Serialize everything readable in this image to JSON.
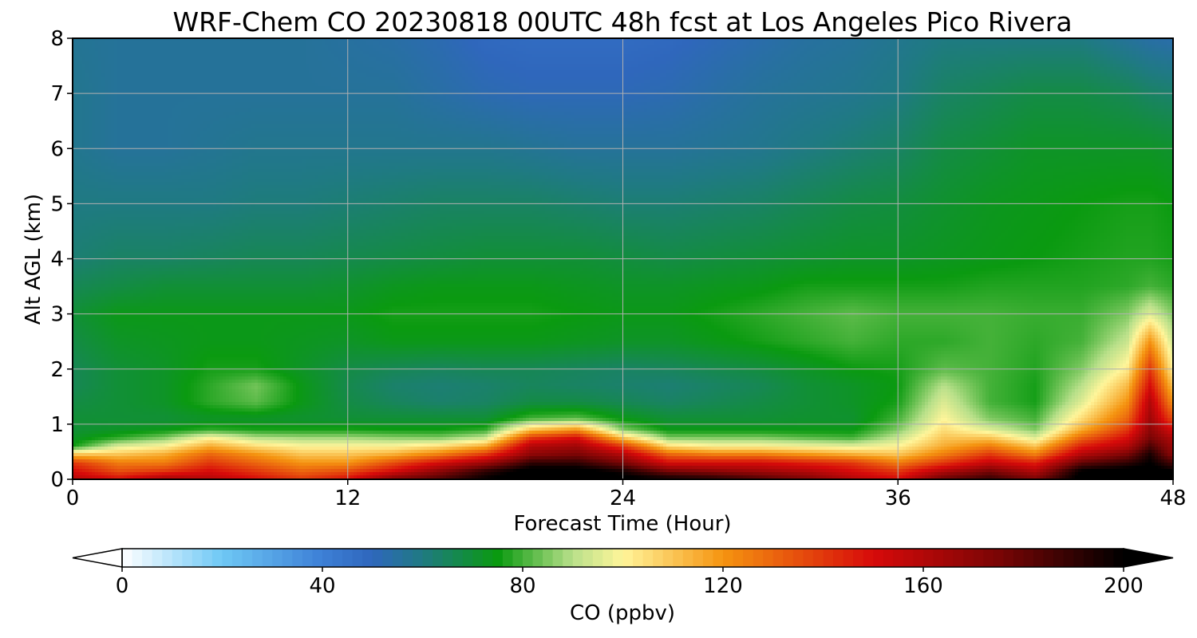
{
  "chart_data": {
    "type": "heatmap",
    "title": "WRF-Chem CO  20230818 00UTC 48h fcst at Los Angeles Pico Rivera",
    "xlabel": "Forecast Time (Hour)",
    "ylabel": "Alt AGL (km)",
    "xlim": [
      0,
      48
    ],
    "ylim": [
      0,
      8
    ],
    "xticks": [
      0,
      12,
      24,
      36,
      48
    ],
    "yticks": [
      0,
      1,
      2,
      3,
      4,
      5,
      6,
      7,
      8
    ],
    "grid": true,
    "colorbar": {
      "label": "CO  (ppbv)",
      "range": [
        0,
        200
      ],
      "extend": "both",
      "ticks": [
        0,
        40,
        80,
        120,
        160,
        200
      ],
      "stops": [
        {
          "v": 0,
          "c": "#ffffff"
        },
        {
          "v": 20,
          "c": "#6ec8f5"
        },
        {
          "v": 40,
          "c": "#3d7fd6"
        },
        {
          "v": 50,
          "c": "#2f67bc"
        },
        {
          "v": 60,
          "c": "#1f7a82"
        },
        {
          "v": 75,
          "c": "#0a9a10"
        },
        {
          "v": 90,
          "c": "#b9e08a"
        },
        {
          "v": 100,
          "c": "#fff59a"
        },
        {
          "v": 120,
          "c": "#f59410"
        },
        {
          "v": 150,
          "c": "#d70a0a"
        },
        {
          "v": 175,
          "c": "#7a0505"
        },
        {
          "v": 200,
          "c": "#000000"
        }
      ]
    },
    "x": [
      0,
      2,
      4,
      6,
      8,
      10,
      12,
      14,
      16,
      18,
      20,
      22,
      24,
      26,
      28,
      30,
      32,
      34,
      36,
      38,
      40,
      42,
      44,
      46,
      47,
      48
    ],
    "y": [
      0,
      0.15,
      0.3,
      0.45,
      0.6,
      0.75,
      0.9,
      1.1,
      1.4,
      1.7,
      2.0,
      2.5,
      3.0,
      3.5,
      4.0,
      5.0,
      6.0,
      7.0,
      8.0
    ],
    "z": [
      [
        160,
        150,
        165,
        160,
        150,
        140,
        150,
        175,
        185,
        200,
        210,
        210,
        205,
        200,
        195,
        185,
        175,
        160,
        150,
        180,
        190,
        175,
        205,
        210,
        210,
        200
      ],
      [
        150,
        135,
        140,
        150,
        140,
        130,
        135,
        150,
        170,
        190,
        205,
        205,
        195,
        175,
        170,
        165,
        160,
        150,
        140,
        160,
        175,
        160,
        200,
        205,
        205,
        200
      ],
      [
        140,
        125,
        125,
        140,
        130,
        120,
        120,
        135,
        150,
        165,
        190,
        190,
        175,
        150,
        150,
        150,
        145,
        140,
        125,
        140,
        155,
        145,
        180,
        190,
        200,
        185
      ],
      [
        110,
        110,
        115,
        130,
        120,
        110,
        110,
        115,
        125,
        140,
        170,
        175,
        160,
        130,
        125,
        125,
        120,
        115,
        110,
        125,
        140,
        125,
        160,
        175,
        195,
        170
      ],
      [
        75,
        95,
        100,
        115,
        105,
        100,
        100,
        100,
        105,
        115,
        160,
        165,
        140,
        105,
        100,
        100,
        98,
        96,
        100,
        115,
        125,
        110,
        145,
        160,
        185,
        165
      ],
      [
        72,
        78,
        85,
        100,
        90,
        88,
        88,
        86,
        85,
        92,
        140,
        150,
        110,
        85,
        85,
        85,
        82,
        80,
        92,
        110,
        110,
        95,
        130,
        150,
        175,
        160
      ],
      [
        70,
        72,
        74,
        78,
        76,
        76,
        76,
        75,
        75,
        78,
        110,
        120,
        85,
        74,
        74,
        74,
        74,
        74,
        85,
        105,
        95,
        85,
        115,
        140,
        170,
        150
      ],
      [
        70,
        70,
        70,
        72,
        72,
        71,
        70,
        70,
        70,
        70,
        80,
        82,
        74,
        70,
        70,
        70,
        71,
        71,
        80,
        100,
        85,
        80,
        105,
        130,
        165,
        135
      ],
      [
        68,
        70,
        72,
        78,
        82,
        74,
        68,
        65,
        63,
        64,
        68,
        68,
        66,
        64,
        66,
        68,
        70,
        72,
        76,
        95,
        80,
        76,
        95,
        120,
        160,
        120
      ],
      [
        66,
        70,
        72,
        78,
        84,
        74,
        67,
        63,
        62,
        63,
        65,
        64,
        63,
        62,
        64,
        66,
        70,
        72,
        75,
        90,
        80,
        76,
        90,
        112,
        150,
        110
      ],
      [
        66,
        70,
        72,
        76,
        76,
        72,
        68,
        66,
        65,
        66,
        66,
        65,
        64,
        65,
        67,
        69,
        72,
        75,
        76,
        82,
        80,
        77,
        85,
        102,
        140,
        100
      ],
      [
        68,
        72,
        73,
        74,
        74,
        73,
        72,
        74,
        74,
        74,
        74,
        73,
        72,
        72,
        74,
        76,
        78,
        80,
        78,
        78,
        80,
        78,
        80,
        92,
        120,
        92
      ],
      [
        70,
        74,
        74,
        74,
        74,
        74,
        74,
        76,
        76,
        76,
        76,
        75,
        74,
        74,
        76,
        78,
        80,
        82,
        80,
        80,
        80,
        79,
        79,
        85,
        95,
        85
      ],
      [
        66,
        68,
        70,
        70,
        70,
        70,
        71,
        73,
        74,
        74,
        74,
        73,
        72,
        72,
        73,
        74,
        76,
        76,
        76,
        76,
        77,
        77,
        77,
        78,
        80,
        78
      ],
      [
        62,
        64,
        64,
        65,
        66,
        66,
        67,
        68,
        69,
        70,
        70,
        70,
        69,
        68,
        69,
        70,
        71,
        72,
        72,
        73,
        74,
        75,
        76,
        77,
        77,
        76
      ],
      [
        60,
        60,
        60,
        60,
        61,
        61,
        62,
        63,
        64,
        64,
        64,
        63,
        62,
        62,
        63,
        64,
        66,
        68,
        69,
        71,
        73,
        74,
        75,
        76,
        76,
        75
      ],
      [
        58,
        56,
        56,
        57,
        58,
        58,
        58,
        58,
        58,
        58,
        57,
        56,
        56,
        56,
        57,
        58,
        60,
        62,
        64,
        68,
        70,
        72,
        72,
        72,
        72,
        71
      ],
      [
        58,
        56,
        56,
        56,
        56,
        56,
        56,
        56,
        54,
        52,
        51,
        51,
        51,
        52,
        54,
        56,
        57,
        58,
        60,
        64,
        66,
        68,
        68,
        66,
        64,
        63
      ],
      [
        57,
        56,
        56,
        56,
        56,
        56,
        55,
        54,
        52,
        49,
        48,
        48,
        48,
        49,
        51,
        53,
        55,
        56,
        58,
        60,
        60,
        60,
        60,
        56,
        54,
        53
      ]
    ]
  }
}
